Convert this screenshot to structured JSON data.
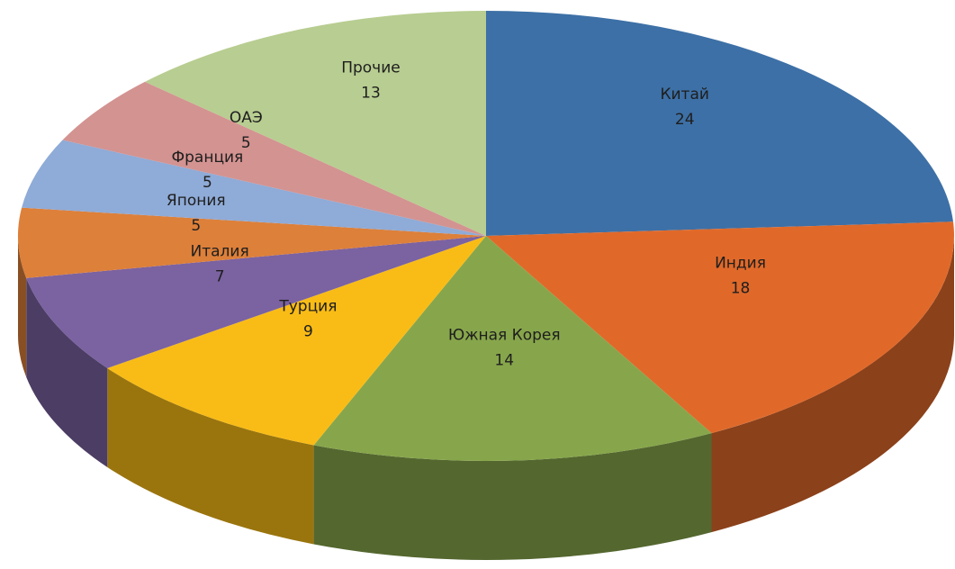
{
  "chart_data": {
    "type": "pie",
    "categories": [
      "Китай",
      "Индия",
      "Южная Корея",
      "Турция",
      "Италия",
      "Япония",
      "Франция",
      "ОАЭ",
      "Прочие"
    ],
    "values": [
      24,
      18,
      14,
      9,
      7,
      5,
      5,
      5,
      13
    ],
    "colors": [
      "#3d70a6",
      "#e0692a",
      "#87a64b",
      "#f9bc16",
      "#7b62a1",
      "#dd803a",
      "#8fabd7",
      "#d39391",
      "#b8cd91"
    ]
  }
}
